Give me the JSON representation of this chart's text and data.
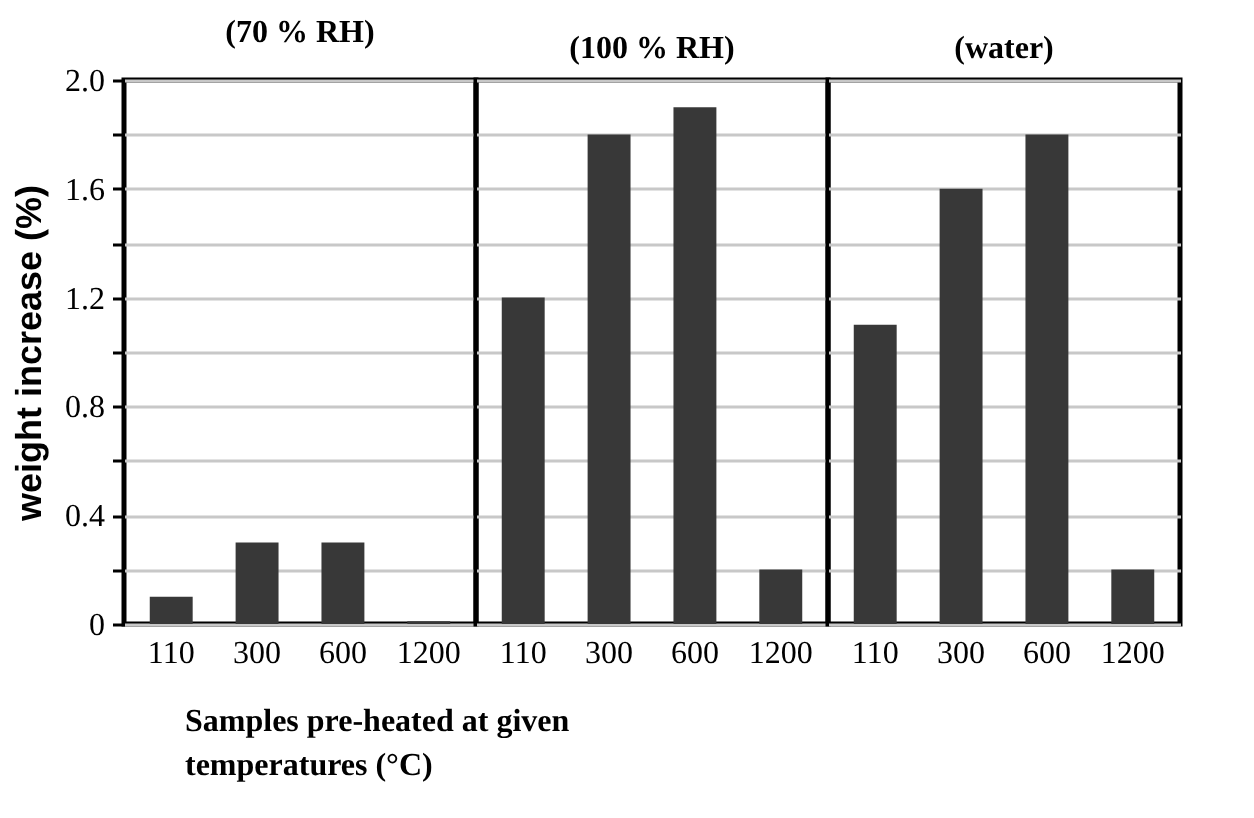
{
  "chart_data": [
    {
      "type": "bar",
      "title": "(70 % RH)",
      "ylabel": "weight increase (%)",
      "xlabel": "Samples pre-heated at given temperatures (°C)",
      "categories": [
        "110",
        "300",
        "600",
        "1200"
      ],
      "values": [
        0.1,
        0.3,
        0.3,
        0.01
      ],
      "color": "#383838",
      "ylim": [
        0,
        2
      ],
      "yticks": [
        0,
        {
          "value": 0.2,
          "label": null
        },
        0.4,
        {
          "value": 0.6,
          "label": null
        },
        0.8,
        {
          "value": 1.0,
          "label": null
        },
        1.2,
        {
          "value": 1.4,
          "label": null
        },
        1.6,
        {
          "value": 1.8,
          "label": null
        },
        {
          "value": 2.0,
          "label": "2.0"
        }
      ],
      "grid": "y"
    },
    {
      "type": "bar",
      "title": "(100 % RH)",
      "categories": [
        "110",
        "300",
        "600",
        "1200"
      ],
      "values": [
        1.2,
        1.8,
        1.9,
        0.2
      ],
      "color": "#383838",
      "ylim": [
        0,
        2
      ],
      "yticks": [
        0,
        0.2,
        0.4,
        0.6,
        0.8,
        1.0,
        1.2,
        1.4,
        1.6,
        1.8,
        2.0
      ],
      "grid": "y",
      "tick_labels": "x"
    },
    {
      "type": "bar",
      "title": "(water)",
      "categories": [
        "110",
        "300",
        "600",
        "1200"
      ],
      "values": [
        1.1,
        1.6,
        1.8,
        0.2
      ],
      "color": "#383838",
      "ylim": [
        0,
        2
      ],
      "yticks": [
        0,
        0.2,
        0.4,
        0.6,
        0.8,
        1.0,
        1.2,
        1.4,
        1.6,
        1.8,
        2.0
      ],
      "grid": "y",
      "tick_labels": "x"
    }
  ]
}
